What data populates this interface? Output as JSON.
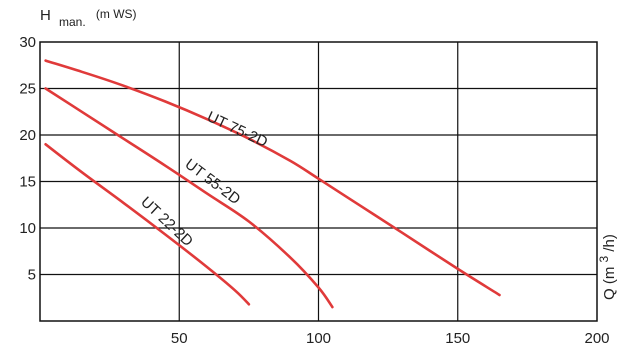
{
  "chart_data": {
    "type": "line",
    "title": "",
    "ylabel": {
      "main": "H",
      "sub": "man.",
      "unit": "(m WS)"
    },
    "xlabel": {
      "text": "Q (m",
      "sup": "3",
      "tail": "/h)"
    },
    "xlim": [
      0,
      200
    ],
    "ylim": [
      0,
      30
    ],
    "x_ticks": [
      50,
      100,
      150,
      200
    ],
    "y_ticks": [
      5,
      10,
      15,
      20,
      25,
      30
    ],
    "grid": true,
    "series_color": "#e03a3a",
    "series": [
      {
        "name": "UT 75-2D",
        "x": [
          2,
          15,
          30,
          45,
          60,
          75,
          90,
          100,
          115,
          130,
          150,
          165
        ],
        "y": [
          28,
          26.8,
          25.3,
          23.6,
          21.7,
          19.6,
          17.2,
          15.3,
          12.4,
          9.5,
          5.6,
          2.8
        ]
      },
      {
        "name": "UT 55-2D",
        "x": [
          2,
          15,
          30,
          45,
          60,
          75,
          90,
          100,
          105
        ],
        "y": [
          25,
          22.5,
          19.6,
          16.7,
          13.7,
          10.7,
          6.8,
          3.6,
          1.5
        ]
      },
      {
        "name": "UT 22-2D",
        "x": [
          2,
          15,
          30,
          45,
          60,
          70,
          75
        ],
        "y": [
          19,
          16,
          12.7,
          9.3,
          5.8,
          3.3,
          1.8
        ]
      }
    ]
  }
}
